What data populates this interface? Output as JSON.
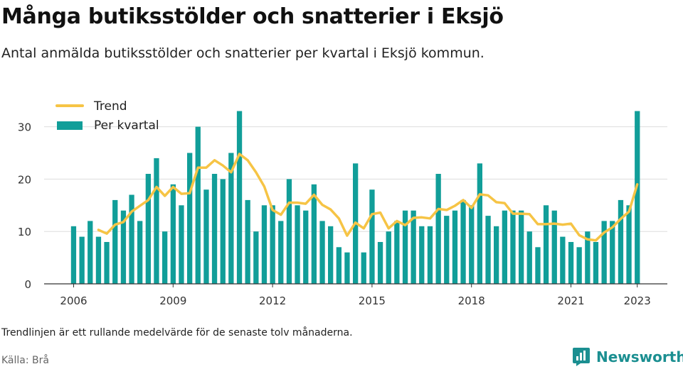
{
  "title": "Många butiksstölder och snatterier i Eksjö",
  "subtitle": "Antal anmälda butiksstölder och snatterier per kvartal i Eksjö kommun.",
  "footnote": "Trendlinjen är ett rullande medelvärde för de senaste tolv månaderna.",
  "source": "Källa: Brå",
  "brand": {
    "name": "Newsworthy",
    "icon": "newsworthy-logo-icon"
  },
  "colors": {
    "bars": "#119e99",
    "trend": "#f6c445",
    "grid": "#dddddd",
    "axis": "#333333"
  },
  "chart_data": {
    "type": "bar",
    "title": "Många butiksstölder och snatterier i Eksjö",
    "xlabel": "",
    "ylabel": "",
    "ylim": [
      0,
      35
    ],
    "yticks": [
      0,
      10,
      20,
      30
    ],
    "xticks": [
      "2006",
      "2009",
      "2012",
      "2015",
      "2018",
      "2021",
      "2023"
    ],
    "grid": true,
    "legend_position": "top-left",
    "categories": [
      "2006Q1",
      "2006Q2",
      "2006Q3",
      "2006Q4",
      "2007Q1",
      "2007Q2",
      "2007Q3",
      "2007Q4",
      "2008Q1",
      "2008Q2",
      "2008Q3",
      "2008Q4",
      "2009Q1",
      "2009Q2",
      "2009Q3",
      "2009Q4",
      "2010Q1",
      "2010Q2",
      "2010Q3",
      "2010Q4",
      "2011Q1",
      "2011Q2",
      "2011Q3",
      "2011Q4",
      "2012Q1",
      "2012Q2",
      "2012Q3",
      "2012Q4",
      "2013Q1",
      "2013Q2",
      "2013Q3",
      "2013Q4",
      "2014Q1",
      "2014Q2",
      "2014Q3",
      "2014Q4",
      "2015Q1",
      "2015Q2",
      "2015Q3",
      "2015Q4",
      "2016Q1",
      "2016Q2",
      "2016Q3",
      "2016Q4",
      "2017Q1",
      "2017Q2",
      "2017Q3",
      "2017Q4",
      "2018Q1",
      "2018Q2",
      "2018Q3",
      "2018Q4",
      "2019Q1",
      "2019Q2",
      "2019Q3",
      "2019Q4",
      "2020Q1",
      "2020Q2",
      "2020Q3",
      "2020Q4",
      "2021Q1",
      "2021Q2",
      "2021Q3",
      "2021Q4",
      "2022Q1",
      "2022Q2",
      "2022Q3",
      "2022Q4",
      "2023Q1"
    ],
    "series": [
      {
        "name": "Per kvartal",
        "type": "bar",
        "values": [
          11,
          9,
          12,
          9,
          8,
          16,
          14,
          17,
          12,
          21,
          24,
          10,
          19,
          15,
          25,
          30,
          18,
          21,
          20,
          25,
          33,
          16,
          10,
          15,
          15,
          12,
          20,
          15,
          14,
          19,
          12,
          11,
          7,
          6,
          23,
          6,
          18,
          8,
          10,
          12,
          14,
          14,
          11,
          11,
          21,
          13,
          14,
          16,
          15,
          23,
          13,
          11,
          14,
          14,
          14,
          10,
          7,
          15,
          14,
          9,
          8,
          7,
          10,
          8,
          12,
          12,
          16,
          15,
          33
        ]
      },
      {
        "name": "Trend",
        "type": "line",
        "x": [
          2006.75,
          2007.0,
          2007.25,
          2007.5,
          2007.75,
          2008.0,
          2008.25,
          2008.5,
          2008.75,
          2009.0,
          2009.25,
          2009.5,
          2009.75,
          2010.0,
          2010.25,
          2010.5,
          2010.75,
          2011.0,
          2011.25,
          2011.5,
          2011.75,
          2012.0,
          2012.25,
          2012.5,
          2012.75,
          2013.0,
          2013.25,
          2013.5,
          2013.75,
          2014.0,
          2014.25,
          2014.5,
          2014.75,
          2015.0,
          2015.25,
          2015.5,
          2015.75,
          2016.0,
          2016.25,
          2016.5,
          2016.75,
          2017.0,
          2017.25,
          2017.5,
          2017.75,
          2018.0,
          2018.25,
          2018.5,
          2018.75,
          2019.0,
          2019.25,
          2019.5,
          2019.75,
          2020.0,
          2020.25,
          2020.5,
          2020.75,
          2021.0,
          2021.25,
          2021.5,
          2021.75,
          2022.0,
          2022.25,
          2022.5,
          2022.75,
          2023.0
        ],
        "values": [
          10.3,
          9.6,
          11.3,
          11.8,
          13.8,
          14.9,
          16.0,
          18.5,
          16.8,
          18.5,
          17.2,
          17.3,
          22.2,
          22.2,
          23.6,
          22.6,
          21.3,
          24.8,
          23.6,
          21.3,
          18.6,
          14.1,
          13.2,
          15.5,
          15.5,
          15.3,
          17.0,
          15.1,
          14.2,
          12.5,
          9.2,
          11.7,
          10.6,
          13.3,
          13.6,
          10.6,
          12.0,
          11.2,
          12.6,
          12.7,
          12.5,
          14.3,
          14.1,
          14.9,
          16.0,
          14.5,
          17.1,
          16.9,
          15.6,
          15.4,
          13.4,
          13.4,
          13.3,
          11.4,
          11.4,
          11.5,
          11.3,
          11.5,
          9.3,
          8.5,
          8.3,
          9.8,
          10.8,
          12.4,
          13.8,
          19.0
        ]
      }
    ]
  }
}
